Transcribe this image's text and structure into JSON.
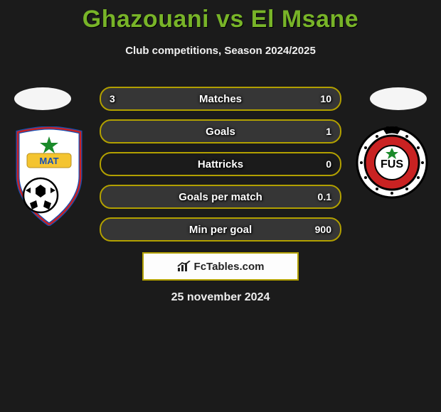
{
  "title": "Ghazouani vs El Msane",
  "subtitle": "Club competitions, Season 2024/2025",
  "date": "25 november 2024",
  "brand": "FcTables.com",
  "colors": {
    "background": "#1b1b1b",
    "accent_green": "#78b428",
    "bar_border": "#b2a000",
    "bar_fill": "rgba(255,255,255,0.12)",
    "text": "#ffffff"
  },
  "bars": [
    {
      "label": "Matches",
      "left": "3",
      "right": "10",
      "left_pct": 23,
      "right_pct": 77
    },
    {
      "label": "Goals",
      "left": "",
      "right": "1",
      "left_pct": 0,
      "right_pct": 100
    },
    {
      "label": "Hattricks",
      "left": "",
      "right": "0",
      "left_pct": 0,
      "right_pct": 0
    },
    {
      "label": "Goals per match",
      "left": "",
      "right": "0.1",
      "left_pct": 0,
      "right_pct": 100
    },
    {
      "label": "Min per goal",
      "left": "",
      "right": "900",
      "left_pct": 0,
      "right_pct": 100
    }
  ],
  "left_team": {
    "name": "MAT",
    "primary": "#c92222",
    "secondary": "#1650b5"
  },
  "right_team": {
    "name": "FUS",
    "primary": "#c92222",
    "secondary": "#000000"
  }
}
